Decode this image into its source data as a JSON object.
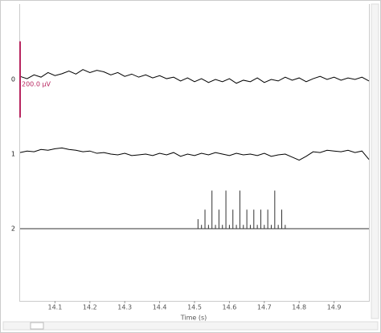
{
  "chart_data": {
    "type": "line",
    "xlabel": "Time (s)",
    "xlim": [
      14.0,
      15.0
    ],
    "xticks": [
      14.1,
      14.2,
      14.3,
      14.4,
      14.5,
      14.6,
      14.7,
      14.8,
      14.9
    ],
    "scale_bar": {
      "value": 200,
      "label": "200.0 μV",
      "color": "#b8255f"
    },
    "series": [
      {
        "name": "0",
        "color": "#000000",
        "x": [
          14.0,
          14.02,
          14.04,
          14.06,
          14.08,
          14.1,
          14.12,
          14.14,
          14.16,
          14.18,
          14.2,
          14.22,
          14.24,
          14.26,
          14.28,
          14.3,
          14.32,
          14.34,
          14.36,
          14.38,
          14.4,
          14.42,
          14.44,
          14.46,
          14.48,
          14.5,
          14.52,
          14.54,
          14.56,
          14.58,
          14.6,
          14.62,
          14.64,
          14.66,
          14.68,
          14.7,
          14.72,
          14.74,
          14.76,
          14.78,
          14.8,
          14.82,
          14.84,
          14.86,
          14.88,
          14.9,
          14.92,
          14.94,
          14.96,
          14.98,
          15.0
        ],
        "values": [
          8,
          2,
          12,
          6,
          18,
          10,
          15,
          22,
          14,
          26,
          18,
          24,
          20,
          12,
          18,
          8,
          14,
          6,
          12,
          4,
          10,
          2,
          6,
          -4,
          4,
          -6,
          2,
          -8,
          0,
          -6,
          2,
          -10,
          -2,
          -6,
          4,
          -8,
          0,
          -4,
          6,
          -2,
          4,
          -6,
          2,
          8,
          0,
          6,
          -2,
          4,
          0,
          6,
          -4
        ]
      },
      {
        "name": "1",
        "color": "#000000",
        "x": [
          14.0,
          14.02,
          14.04,
          14.06,
          14.08,
          14.1,
          14.12,
          14.14,
          14.16,
          14.18,
          14.2,
          14.22,
          14.24,
          14.26,
          14.28,
          14.3,
          14.32,
          14.34,
          14.36,
          14.38,
          14.4,
          14.42,
          14.44,
          14.46,
          14.48,
          14.5,
          14.52,
          14.54,
          14.56,
          14.58,
          14.6,
          14.62,
          14.64,
          14.66,
          14.68,
          14.7,
          14.72,
          14.74,
          14.76,
          14.78,
          14.8,
          14.82,
          14.84,
          14.86,
          14.88,
          14.9,
          14.92,
          14.94,
          14.96,
          14.98,
          15.0
        ],
        "values": [
          4,
          8,
          6,
          12,
          10,
          14,
          16,
          12,
          10,
          6,
          8,
          2,
          4,
          0,
          -2,
          2,
          -4,
          -2,
          0,
          -4,
          2,
          -2,
          4,
          -6,
          0,
          -4,
          2,
          -2,
          4,
          0,
          -4,
          2,
          -2,
          0,
          -4,
          2,
          -6,
          -2,
          0,
          -8,
          -16,
          -6,
          6,
          4,
          10,
          8,
          6,
          10,
          4,
          8,
          -14
        ]
      },
      {
        "name": "2",
        "color": "#333333",
        "type": "stem",
        "x": [
          14.51,
          14.52,
          14.53,
          14.54,
          14.55,
          14.56,
          14.57,
          14.58,
          14.59,
          14.6,
          14.61,
          14.62,
          14.63,
          14.64,
          14.65,
          14.66,
          14.67,
          14.68,
          14.69,
          14.7,
          14.71,
          14.72,
          14.73,
          14.74,
          14.75,
          14.76
        ],
        "values": [
          25,
          10,
          50,
          10,
          100,
          10,
          50,
          10,
          100,
          10,
          50,
          10,
          100,
          10,
          50,
          10,
          50,
          10,
          50,
          10,
          50,
          10,
          100,
          10,
          50,
          10
        ]
      }
    ]
  }
}
